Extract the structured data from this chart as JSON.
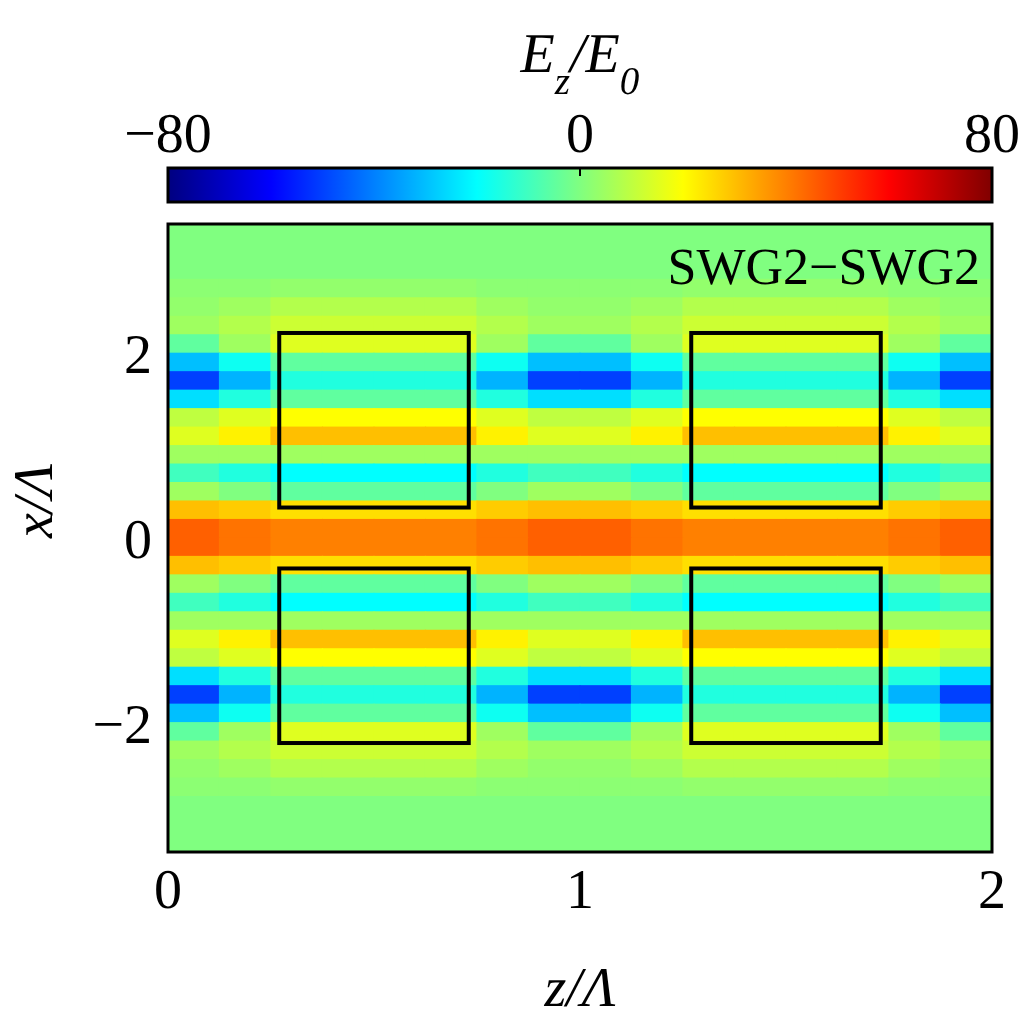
{
  "chart_data": {
    "type": "heatmap",
    "annotations": [
      "SWG2−SWG2"
    ],
    "xlabel": "z/Λ",
    "ylabel": "x/Λ",
    "clabel": "E$_{z}$/E$_{0}$",
    "xlim": [
      0,
      2
    ],
    "xticks": [
      0,
      1,
      2
    ],
    "ylim": [
      -3.4,
      3.4
    ],
    "yticks": [
      -2,
      0,
      2
    ],
    "clim": [
      -80,
      80
    ],
    "cticks": [
      -80,
      0,
      80
    ],
    "x": [
      0.0625,
      0.1875,
      0.3125,
      0.4375,
      0.5625,
      0.6875,
      0.8125,
      0.9375,
      1.0625,
      1.1875,
      1.3125,
      1.4375,
      1.5625,
      1.6875,
      1.8125,
      1.9375
    ],
    "y": [
      3.3,
      3.1,
      2.9,
      2.7,
      2.5,
      2.3,
      2.1,
      1.9,
      1.7,
      1.5,
      1.3,
      1.1,
      0.9,
      0.7,
      0.5,
      0.3,
      0.1,
      -0.1,
      -0.3,
      -0.5,
      -0.7,
      -0.9,
      -1.1,
      -1.3,
      -1.5,
      -1.7,
      -1.9,
      -2.1,
      -2.3,
      -2.5,
      -2.7,
      -2.9,
      -3.1,
      -3.3
    ],
    "cells": [
      [
        0,
        0,
        0,
        0,
        0,
        0,
        0,
        0,
        0,
        0,
        0,
        0,
        0,
        0,
        0,
        0
      ],
      [
        0,
        0,
        0,
        0,
        0,
        0,
        0,
        0,
        0,
        0,
        0,
        0,
        0,
        0,
        0,
        0
      ],
      [
        0,
        0,
        0,
        0,
        0,
        0,
        0,
        0,
        0,
        0,
        0,
        0,
        0,
        0,
        0,
        0
      ],
      [
        2,
        2,
        3,
        3,
        3,
        3,
        2,
        2,
        2,
        2,
        3,
        3,
        3,
        3,
        2,
        2
      ],
      [
        3,
        5,
        8,
        8,
        8,
        8,
        5,
        3,
        3,
        5,
        8,
        8,
        8,
        8,
        5,
        3
      ],
      [
        5,
        8,
        12,
        12,
        12,
        12,
        8,
        5,
        5,
        8,
        12,
        12,
        12,
        12,
        8,
        5
      ],
      [
        -5,
        5,
        15,
        15,
        15,
        15,
        5,
        -5,
        -5,
        5,
        15,
        15,
        15,
        15,
        5,
        -5
      ],
      [
        -30,
        -18,
        -5,
        -5,
        -5,
        -5,
        -18,
        -30,
        -30,
        -18,
        -5,
        -5,
        -5,
        -5,
        -18,
        -30
      ],
      [
        -50,
        -32,
        -15,
        -15,
        -15,
        -15,
        -32,
        -50,
        -50,
        -32,
        -15,
        -15,
        -15,
        -15,
        -32,
        -50
      ],
      [
        -25,
        -15,
        -5,
        -5,
        -5,
        -5,
        -15,
        -25,
        -25,
        -15,
        -5,
        -5,
        -5,
        -5,
        -15,
        -25
      ],
      [
        10,
        15,
        20,
        20,
        20,
        20,
        15,
        10,
        10,
        15,
        20,
        20,
        20,
        20,
        15,
        10
      ],
      [
        15,
        22,
        30,
        30,
        30,
        30,
        22,
        15,
        15,
        22,
        30,
        30,
        30,
        30,
        22,
        15
      ],
      [
        5,
        5,
        5,
        5,
        5,
        5,
        5,
        5,
        5,
        5,
        5,
        5,
        5,
        5,
        5,
        5
      ],
      [
        -10,
        -15,
        -20,
        -20,
        -20,
        -20,
        -15,
        -10,
        -10,
        -15,
        -20,
        -20,
        -20,
        -20,
        -15,
        -10
      ],
      [
        5,
        0,
        -5,
        -5,
        -5,
        -5,
        0,
        5,
        5,
        0,
        -5,
        -5,
        -5,
        -5,
        0,
        5
      ],
      [
        30,
        28,
        25,
        25,
        25,
        25,
        28,
        30,
        30,
        28,
        25,
        25,
        25,
        25,
        28,
        30
      ],
      [
        45,
        42,
        40,
        40,
        40,
        40,
        42,
        45,
        45,
        42,
        40,
        40,
        40,
        40,
        42,
        45
      ],
      [
        45,
        42,
        40,
        40,
        40,
        40,
        42,
        45,
        45,
        42,
        40,
        40,
        40,
        40,
        42,
        45
      ],
      [
        30,
        28,
        25,
        25,
        25,
        25,
        28,
        30,
        30,
        28,
        25,
        25,
        25,
        25,
        28,
        30
      ],
      [
        5,
        0,
        -5,
        -5,
        -5,
        -5,
        0,
        5,
        5,
        0,
        -5,
        -5,
        -5,
        -5,
        0,
        5
      ],
      [
        -10,
        -15,
        -20,
        -20,
        -20,
        -20,
        -15,
        -10,
        -10,
        -15,
        -20,
        -20,
        -20,
        -20,
        -15,
        -10
      ],
      [
        5,
        5,
        5,
        5,
        5,
        5,
        5,
        5,
        5,
        5,
        5,
        5,
        5,
        5,
        5,
        5
      ],
      [
        15,
        22,
        30,
        30,
        30,
        30,
        22,
        15,
        15,
        22,
        30,
        30,
        30,
        30,
        22,
        15
      ],
      [
        10,
        15,
        20,
        20,
        20,
        20,
        15,
        10,
        10,
        15,
        20,
        20,
        20,
        20,
        15,
        10
      ],
      [
        -25,
        -15,
        -5,
        -5,
        -5,
        -5,
        -15,
        -25,
        -25,
        -15,
        -5,
        -5,
        -5,
        -5,
        -15,
        -25
      ],
      [
        -50,
        -32,
        -15,
        -15,
        -15,
        -15,
        -32,
        -50,
        -50,
        -32,
        -15,
        -15,
        -15,
        -15,
        -32,
        -50
      ],
      [
        -30,
        -18,
        -5,
        -5,
        -5,
        -5,
        -18,
        -30,
        -30,
        -18,
        -5,
        -5,
        -5,
        -5,
        -18,
        -30
      ],
      [
        -5,
        5,
        15,
        15,
        15,
        15,
        5,
        -5,
        -5,
        5,
        15,
        15,
        15,
        15,
        5,
        -5
      ],
      [
        5,
        8,
        12,
        12,
        12,
        12,
        8,
        5,
        5,
        8,
        12,
        12,
        12,
        12,
        8,
        5
      ],
      [
        3,
        5,
        8,
        8,
        8,
        8,
        5,
        3,
        3,
        5,
        8,
        8,
        8,
        8,
        5,
        3
      ],
      [
        2,
        2,
        3,
        3,
        3,
        3,
        2,
        2,
        2,
        2,
        3,
        3,
        3,
        3,
        2,
        2
      ],
      [
        0,
        0,
        0,
        0,
        0,
        0,
        0,
        0,
        0,
        0,
        0,
        0,
        0,
        0,
        0,
        0
      ],
      [
        0,
        0,
        0,
        0,
        0,
        0,
        0,
        0,
        0,
        0,
        0,
        0,
        0,
        0,
        0,
        0
      ],
      [
        0,
        0,
        0,
        0,
        0,
        0,
        0,
        0,
        0,
        0,
        0,
        0,
        0,
        0,
        0,
        0
      ]
    ]
  }
}
